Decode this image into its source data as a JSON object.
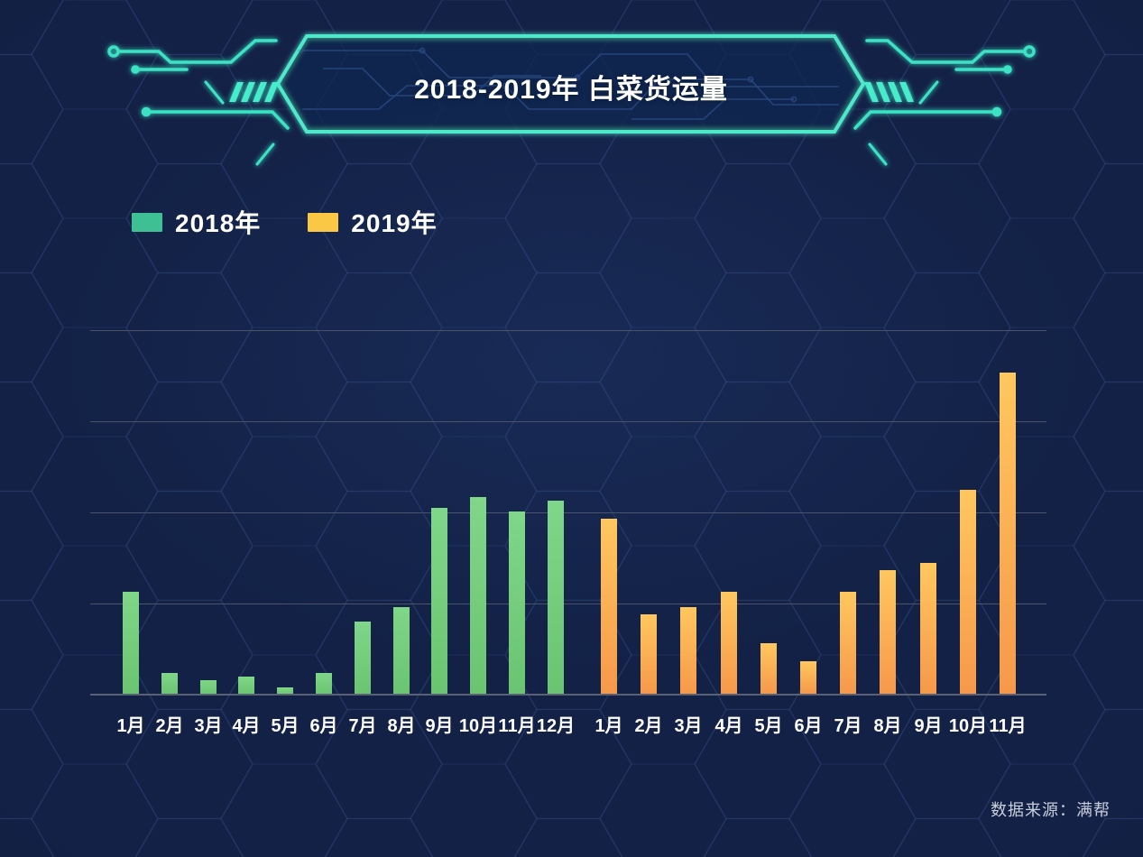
{
  "header": {
    "title": "2018-2019年 白菜货运量"
  },
  "legend": {
    "items": [
      {
        "label": "2018年",
        "color": "#3FBF94"
      },
      {
        "label": "2019年",
        "color": "#FAC845"
      }
    ]
  },
  "footer": {
    "source_note": "数据来源：满帮"
  },
  "colors": {
    "background": "#132146",
    "gridline": "#4B5368",
    "axis_line": "#5A6175",
    "banner_border": "#4FE8CA",
    "decoration": "#3BE3C4",
    "title_text": "#FFFFFF",
    "axis_label_text": "#FFFFFF",
    "source_text": "#C9CEDB"
  },
  "chart_data": {
    "type": "bar",
    "title": "2018-2019年 白菜货运量",
    "xlabel": "",
    "ylabel": "",
    "y_axis_tick_labels_visible": false,
    "value_note": "no numeric y-axis shown; values are relative heights estimated from gridlines, scale 0-100",
    "ylim": [
      0,
      100
    ],
    "gridline_count": 4,
    "grid_on": true,
    "legend_position": "top-left",
    "series": [
      {
        "name": "2018年",
        "legend_color": "#3FBF94",
        "bar_gradient": [
          "#80D689",
          "#6AC470"
        ],
        "categories": [
          "1月",
          "2月",
          "3月",
          "4月",
          "5月",
          "6月",
          "7月",
          "8月",
          "9月",
          "10月",
          "11月",
          "12月"
        ],
        "values": [
          28,
          6,
          4,
          5,
          2,
          6,
          20,
          24,
          51,
          54,
          50,
          53
        ]
      },
      {
        "name": "2019年",
        "legend_color": "#FAC845",
        "bar_gradient": [
          "#FFC75F",
          "#F6984A"
        ],
        "categories": [
          "1月",
          "2月",
          "3月",
          "4月",
          "5月",
          "6月",
          "7月",
          "8月",
          "9月",
          "10月",
          "11月"
        ],
        "values": [
          48,
          22,
          24,
          28,
          14,
          9,
          28,
          34,
          36,
          56,
          88
        ]
      }
    ]
  }
}
